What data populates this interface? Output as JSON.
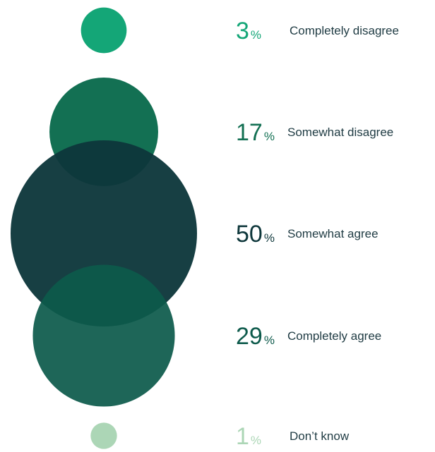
{
  "chart_data": {
    "type": "bubble",
    "percent_symbol": "%",
    "categories": [
      "Completely disagree",
      "Somewhat disagree",
      "Somewhat agree",
      "Completely agree",
      "Don’t know"
    ],
    "values": [
      3,
      17,
      50,
      29,
      1
    ],
    "value_labels": [
      "3",
      "17",
      "50",
      "29",
      "1"
    ],
    "colors": [
      "#14a677",
      "#137053",
      "#0e373b",
      "#0d5a4b",
      "#acd6b6"
    ],
    "value_colors": [
      "#14a677",
      "#137053",
      "#0e373b",
      "#0d5a4b",
      "#acd6b6"
    ]
  }
}
